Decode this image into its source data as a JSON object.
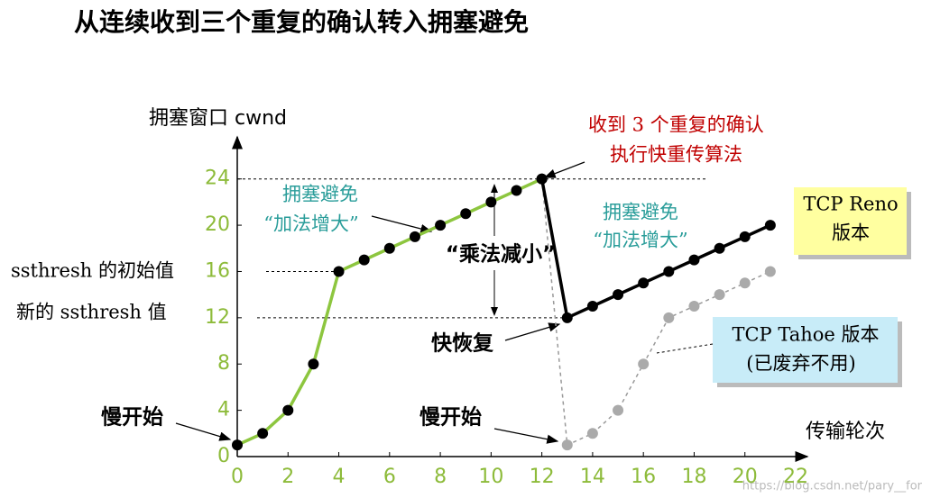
{
  "chart_data": {
    "type": "line",
    "title": "从连续收到三个重复的确认转入拥塞避免",
    "y_label": "拥塞窗口 cwnd",
    "x_label": "传输轮次",
    "xlim": [
      0,
      22
    ],
    "xticks": [
      0,
      2,
      4,
      6,
      8,
      10,
      12,
      14,
      16,
      18,
      20,
      22
    ],
    "ylim": [
      0,
      26
    ],
    "yticks": [
      0,
      4,
      8,
      12,
      16,
      20,
      24
    ],
    "tick_color": "#8dbb3a",
    "series": [
      {
        "color": "#999999",
        "marker_color": "#aaaaaa",
        "dashed": true,
        "x": [
          12,
          13,
          14,
          15,
          16,
          17,
          18,
          19,
          20,
          21
        ],
        "values": [
          24,
          1,
          2,
          4,
          8,
          12,
          13,
          14,
          15,
          16
        ]
      },
      {
        "color": "#8dc63f",
        "marker_color": "#000000",
        "dashed": false,
        "x": [
          0,
          1,
          2,
          3,
          4,
          5,
          6,
          7,
          8,
          9,
          10,
          11,
          12
        ],
        "values": [
          1,
          2,
          4,
          8,
          16,
          17,
          18,
          19,
          20,
          21,
          22,
          23,
          24
        ]
      },
      {
        "color": "#000000",
        "marker_color": "#000000",
        "dashed": false,
        "x": [
          12,
          13,
          14,
          15,
          16,
          17,
          18,
          19,
          20,
          21
        ],
        "values": [
          24,
          12,
          13,
          14,
          15,
          16,
          17,
          18,
          19,
          20
        ]
      }
    ],
    "annotations": [
      "收到 3 个重复的确认",
      "执行快重传算法",
      "拥塞避免",
      "“加法增大”",
      "拥塞避免",
      "“加法增大”",
      "“乘法减小”",
      "TCP Reno",
      "版本",
      "TCP Tahoe 版本",
      "(已废弃不用)",
      "ssthresh 的初始值",
      "新的 ssthresh 值",
      "慢开始",
      "慢开始",
      "快恢复",
      "https://blog.csdn.net/pary__for"
    ]
  }
}
